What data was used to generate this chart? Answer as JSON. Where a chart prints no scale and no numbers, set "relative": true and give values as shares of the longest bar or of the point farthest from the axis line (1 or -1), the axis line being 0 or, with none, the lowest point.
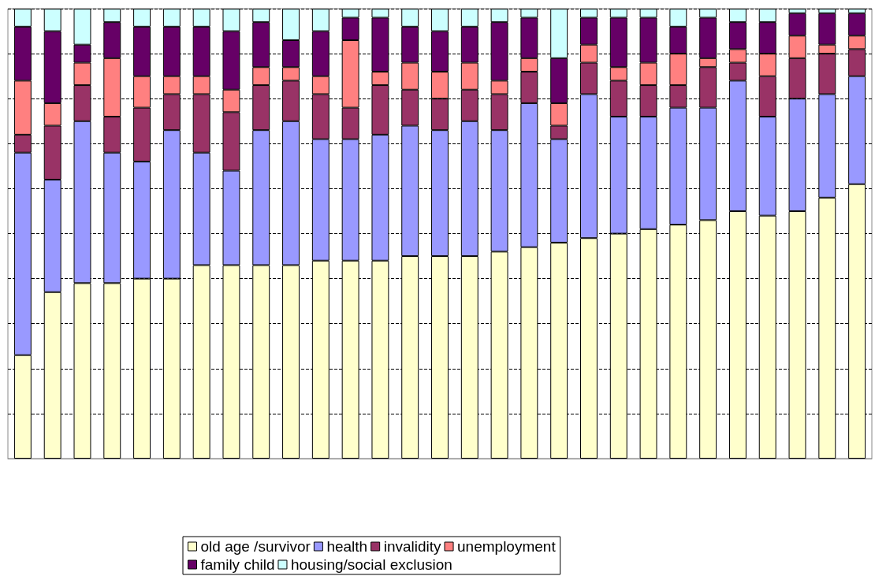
{
  "chart_data": {
    "type": "bar",
    "stacked": true,
    "relative": true,
    "grid": "y",
    "legend": "bottom",
    "line_style": "dashed",
    "categories": [
      null,
      null,
      null,
      null,
      null,
      null,
      null,
      null,
      null,
      null,
      null,
      null,
      null,
      null,
      null,
      null,
      null,
      null,
      null,
      null,
      null,
      null,
      null,
      null,
      null,
      null,
      null,
      null,
      null
    ],
    "series": [
      {
        "name": "old age /survivor",
        "color": "#ffffcc",
        "values": [
          0.23,
          0.37,
          0.39,
          0.39,
          0.4,
          0.4,
          0.43,
          0.43,
          0.43,
          0.43,
          0.44,
          0.44,
          0.44,
          0.45,
          0.45,
          0.45,
          0.46,
          0.47,
          0.48,
          0.49,
          0.5,
          0.51,
          0.52,
          0.53,
          0.55,
          0.54,
          0.55,
          0.58,
          0.61
        ]
      },
      {
        "name": "health",
        "color": "#9999ff",
        "values": [
          0.45,
          0.25,
          0.36,
          0.29,
          0.26,
          0.33,
          0.25,
          0.21,
          0.3,
          0.32,
          0.27,
          0.27,
          0.28,
          0.29,
          0.28,
          0.3,
          0.27,
          0.32,
          0.23,
          0.32,
          0.26,
          0.25,
          0.26,
          0.25,
          0.29,
          0.22,
          0.25,
          0.23,
          0.24
        ]
      },
      {
        "name": "invalidity",
        "color": "#993366",
        "values": [
          0.04,
          0.12,
          0.08,
          0.08,
          0.12,
          0.08,
          0.13,
          0.13,
          0.1,
          0.09,
          0.1,
          0.07,
          0.11,
          0.08,
          0.07,
          0.07,
          0.08,
          0.07,
          0.03,
          0.07,
          0.08,
          0.07,
          0.05,
          0.09,
          0.04,
          0.09,
          0.09,
          0.09,
          0.06
        ]
      },
      {
        "name": "unemployment",
        "color": "#ff8080",
        "values": [
          0.12,
          0.05,
          0.05,
          0.13,
          0.07,
          0.04,
          0.04,
          0.05,
          0.04,
          0.03,
          0.04,
          0.15,
          0.03,
          0.06,
          0.06,
          0.06,
          0.03,
          0.03,
          0.05,
          0.04,
          0.03,
          0.05,
          0.07,
          0.02,
          0.03,
          0.05,
          0.05,
          0.02,
          0.03
        ]
      },
      {
        "name": "family child",
        "color": "#660066",
        "values": [
          0.12,
          0.16,
          0.04,
          0.08,
          0.11,
          0.11,
          0.11,
          0.13,
          0.1,
          0.06,
          0.1,
          0.05,
          0.12,
          0.08,
          0.09,
          0.08,
          0.13,
          0.09,
          0.1,
          0.06,
          0.11,
          0.1,
          0.06,
          0.09,
          0.06,
          0.07,
          0.05,
          0.07,
          0.05
        ]
      },
      {
        "name": "housing/social exclusion",
        "color": "#ccffff",
        "values": [
          0.04,
          0.05,
          0.08,
          0.03,
          0.04,
          0.04,
          0.04,
          0.05,
          0.03,
          0.07,
          0.05,
          0.02,
          0.02,
          0.04,
          0.05,
          0.04,
          0.03,
          0.02,
          0.11,
          0.02,
          0.02,
          0.02,
          0.04,
          0.02,
          0.03,
          0.03,
          0.01,
          0.01,
          0.01
        ]
      }
    ]
  }
}
